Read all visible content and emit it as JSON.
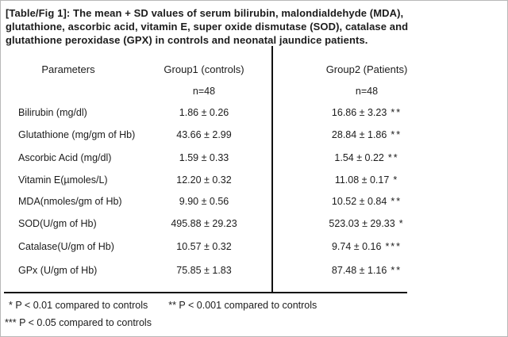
{
  "title": "[Table/Fig 1]: The mean + SD values of serum bilirubin, malondialdehyde  (MDA), glutathione, ascorbic acid, vitamin E, super oxide dismutase (SOD), catalase and glutathione peroxidase (GPX) in controls and neonatal jaundice patients.",
  "table": {
    "headers": {
      "parameters": "Parameters",
      "group1": "Group1 (controls)",
      "group2": "Group2 (Patients)"
    },
    "subheaders": {
      "group1_n": "n=48",
      "group2_n": "n=48"
    },
    "rows": [
      {
        "label": "Bilirubin (mg/dl)",
        "group1": "1.86 ± 0.26",
        "group2": "16.86 ± 3.23",
        "sig": "**"
      },
      {
        "label": "Glutathione (mg/gm of Hb)",
        "group1": "43.66 ± 2.99",
        "group2": "28.84 ± 1.86",
        "sig": "**"
      },
      {
        "label": "Ascorbic Acid (mg/dl)",
        "group1": "1.59 ± 0.33",
        "group2": "1.54 ± 0.22",
        "sig": "**"
      },
      {
        "label": "Vitamin E(µmoles/L)",
        "group1": "12.20 ± 0.32",
        "group2": "11.08 ± 0.17",
        "sig": "*"
      },
      {
        "label": "MDA(nmoles/gm of Hb)",
        "group1": "9.90 ± 0.56",
        "group2": "10.52 ± 0.84",
        "sig": "**"
      },
      {
        "label": "SOD(U/gm of Hb)",
        "group1": "495.88 ± 29.23",
        "group2": "523.03 ± 29.33",
        "sig": "*"
      },
      {
        "label": "Catalase(U/gm of Hb)",
        "group1": "10.57 ± 0.32",
        "group2": "9.74 ± 0.16",
        "sig": "***"
      },
      {
        "label": "GPx (U/gm of Hb)",
        "group1": "75.85 ± 1.83",
        "group2": "87.48 ± 1.16",
        "sig": "**"
      }
    ]
  },
  "footnotes": {
    "line1a": "* P < 0.01 compared to controls",
    "line1b": "** P < 0.001 compared to controls",
    "line2": "*** P < 0.05 compared to controls"
  }
}
